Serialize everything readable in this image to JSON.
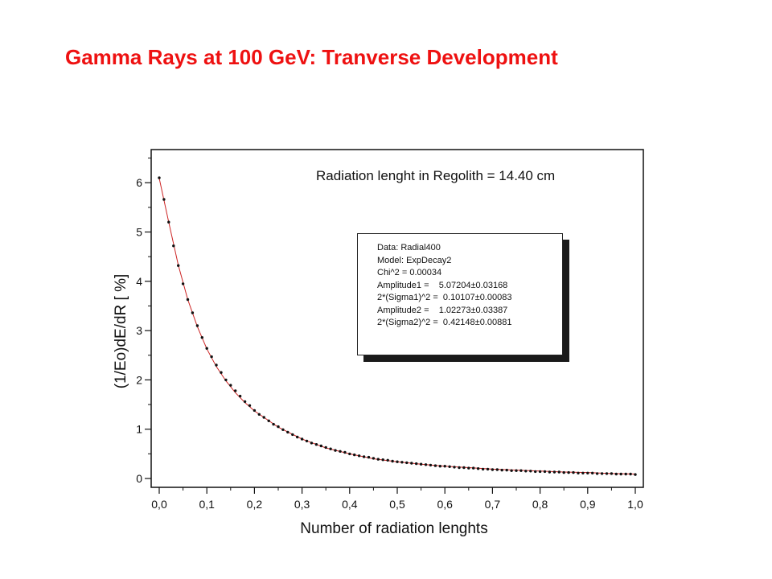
{
  "slide": {
    "title": "Gamma Rays at 100 GeV: Tranverse Development"
  },
  "colors": {
    "title": "#ee1111",
    "fit_curve": "#cc2222",
    "points": "#111111"
  },
  "annotation": "Radiation lenght in Regolith = 14.40 cm",
  "fit_box": {
    "lines": [
      "Data: Radial400",
      "Model: ExpDecay2",
      "Chi^2 = 0.00034",
      "Amplitude1 =    5.07204±0.03168",
      "2*(Sigma1)^2 =  0.10107±0.00083",
      "Amplitude2 =    1.02273±0.03387",
      "2*(Sigma2)^2 =  0.42148±0.00881"
    ]
  },
  "chart_data": {
    "type": "scatter",
    "title": "",
    "xlabel": "Number of radiation lenghts",
    "ylabel": "(1/Eo)dE/dR [ %]",
    "xlim": [
      0.0,
      1.0
    ],
    "ylim": [
      -0.1,
      6.5
    ],
    "x_ticks": [
      0.0,
      0.1,
      0.2,
      0.3,
      0.4,
      0.5,
      0.6,
      0.7,
      0.8,
      0.9,
      1.0
    ],
    "x_tick_labels": [
      "0,0",
      "0,1",
      "0,2",
      "0,3",
      "0,4",
      "0,5",
      "0,6",
      "0,7",
      "0,8",
      "0,9",
      "1,0"
    ],
    "y_ticks": [
      0,
      1,
      2,
      3,
      4,
      5,
      6
    ],
    "y_tick_labels": [
      "0",
      "1",
      "2",
      "3",
      "4",
      "5",
      "6"
    ],
    "grid": false,
    "series": [
      {
        "kind": "points",
        "x": [
          0.0,
          0.01,
          0.02,
          0.03,
          0.04,
          0.05,
          0.06,
          0.07,
          0.08,
          0.09,
          0.1,
          0.11,
          0.12,
          0.13,
          0.14,
          0.15,
          0.16,
          0.17,
          0.18,
          0.19,
          0.2,
          0.21,
          0.22,
          0.23,
          0.24,
          0.25,
          0.26,
          0.27,
          0.28,
          0.29,
          0.3,
          0.31,
          0.32,
          0.33,
          0.34,
          0.35,
          0.36,
          0.37,
          0.38,
          0.39,
          0.4,
          0.41,
          0.42,
          0.43,
          0.44,
          0.45,
          0.46,
          0.47,
          0.48,
          0.49,
          0.5,
          0.51,
          0.52,
          0.53,
          0.54,
          0.55,
          0.56,
          0.57,
          0.58,
          0.59,
          0.6,
          0.61,
          0.62,
          0.63,
          0.64,
          0.65,
          0.66,
          0.67,
          0.68,
          0.69,
          0.7,
          0.71,
          0.72,
          0.73,
          0.74,
          0.75,
          0.76,
          0.77,
          0.78,
          0.79,
          0.8,
          0.81,
          0.82,
          0.83,
          0.84,
          0.85,
          0.86,
          0.87,
          0.88,
          0.89,
          0.9,
          0.91,
          0.92,
          0.93,
          0.94,
          0.95,
          0.96,
          0.97,
          0.98,
          0.99,
          1.0
        ],
        "y": [
          6.1,
          5.66,
          5.2,
          4.72,
          4.32,
          3.95,
          3.63,
          3.36,
          3.1,
          2.86,
          2.64,
          2.47,
          2.3,
          2.15,
          2.0,
          1.89,
          1.78,
          1.67,
          1.56,
          1.48,
          1.38,
          1.3,
          1.24,
          1.17,
          1.1,
          1.05,
          0.99,
          0.94,
          0.89,
          0.84,
          0.8,
          0.76,
          0.72,
          0.69,
          0.66,
          0.63,
          0.6,
          0.57,
          0.55,
          0.53,
          0.5,
          0.48,
          0.46,
          0.44,
          0.43,
          0.41,
          0.39,
          0.38,
          0.37,
          0.35,
          0.34,
          0.33,
          0.32,
          0.31,
          0.3,
          0.29,
          0.28,
          0.27,
          0.26,
          0.25,
          0.25,
          0.24,
          0.23,
          0.22,
          0.22,
          0.21,
          0.21,
          0.2,
          0.19,
          0.19,
          0.18,
          0.18,
          0.17,
          0.17,
          0.16,
          0.16,
          0.16,
          0.15,
          0.15,
          0.14,
          0.14,
          0.14,
          0.13,
          0.13,
          0.13,
          0.12,
          0.12,
          0.12,
          0.11,
          0.11,
          0.11,
          0.11,
          0.1,
          0.1,
          0.1,
          0.1,
          0.09,
          0.09,
          0.09,
          0.09,
          0.08
        ]
      },
      {
        "kind": "fit_curve",
        "model": "ExpDecay2",
        "x": [
          0.0,
          0.02,
          0.04,
          0.06,
          0.08,
          0.1,
          0.12,
          0.14,
          0.16,
          0.18,
          0.2,
          0.25,
          0.3,
          0.35,
          0.4,
          0.45,
          0.5,
          0.55,
          0.6,
          0.65,
          0.7,
          0.75,
          0.8,
          0.85,
          0.9,
          0.95,
          1.0
        ],
        "y": [
          6.09,
          5.2,
          4.33,
          3.63,
          3.08,
          2.63,
          2.27,
          1.98,
          1.74,
          1.54,
          1.37,
          1.04,
          0.8,
          0.62,
          0.5,
          0.4,
          0.34,
          0.29,
          0.25,
          0.22,
          0.19,
          0.17,
          0.15,
          0.13,
          0.12,
          0.1,
          0.09
        ]
      }
    ]
  }
}
